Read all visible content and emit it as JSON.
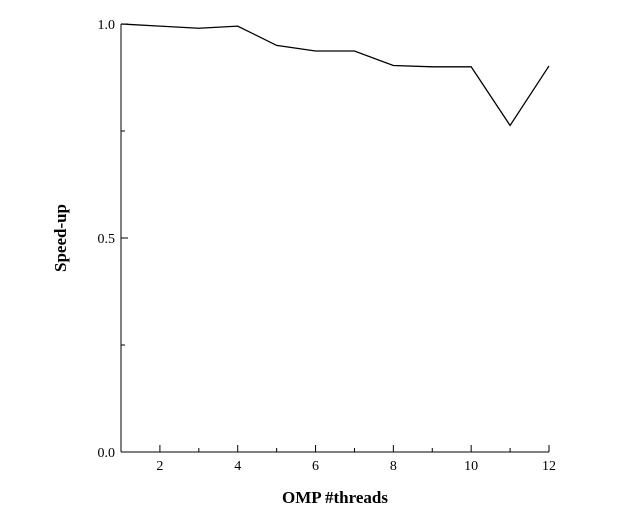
{
  "chart_data": {
    "type": "line",
    "title": "",
    "xlabel": "OMP #threads",
    "ylabel": "Speed-up",
    "xlim": [
      1,
      12
    ],
    "ylim": [
      0.0,
      1.0
    ],
    "x_ticks": [
      2,
      4,
      6,
      8,
      10,
      12
    ],
    "x_tick_labels": [
      "2",
      "4",
      "6",
      "8",
      "10",
      "12"
    ],
    "y_ticks": [
      0.0,
      0.5,
      1.0
    ],
    "y_tick_labels": [
      "0.0",
      "0.5",
      "1.0"
    ],
    "grid": false,
    "legend": "none",
    "line_color": "#000000",
    "series": [
      {
        "x": [
          1,
          2,
          3,
          4,
          5,
          6,
          7,
          8,
          9,
          10,
          11,
          12
        ],
        "values": [
          1.0,
          0.995,
          0.99,
          0.995,
          0.95,
          0.937,
          0.937,
          0.903,
          0.9,
          0.9,
          0.763,
          0.902
        ]
      }
    ]
  }
}
